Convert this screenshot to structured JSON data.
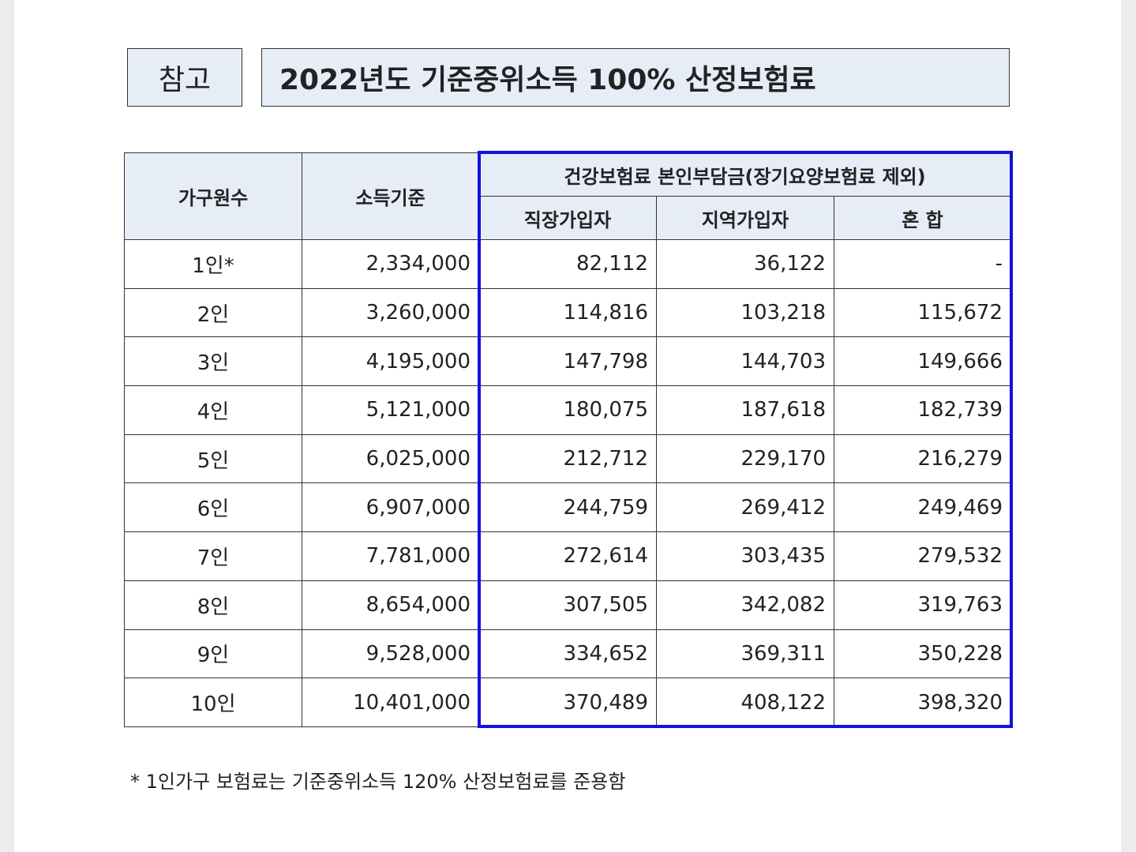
{
  "header": {
    "label": "참고",
    "title": "2022년도 기준중위소득 100% 산정보험료"
  },
  "table": {
    "headers": {
      "household": "가구원수",
      "income": "소득기준",
      "premium_group": "건강보험료 본인부담금(장기요양보험료 제외)",
      "employee": "직장가입자",
      "regional": "지역가입자",
      "mixed": "혼 합"
    },
    "rows": [
      [
        "1인*",
        "2,334,000",
        "82,112",
        "36,122",
        "-"
      ],
      [
        "2인",
        "3,260,000",
        "114,816",
        "103,218",
        "115,672"
      ],
      [
        "3인",
        "4,195,000",
        "147,798",
        "144,703",
        "149,666"
      ],
      [
        "4인",
        "5,121,000",
        "180,075",
        "187,618",
        "182,739"
      ],
      [
        "5인",
        "6,025,000",
        "212,712",
        "229,170",
        "216,279"
      ],
      [
        "6인",
        "6,907,000",
        "244,759",
        "269,412",
        "249,469"
      ],
      [
        "7인",
        "7,781,000",
        "272,614",
        "303,435",
        "279,532"
      ],
      [
        "8인",
        "8,654,000",
        "307,505",
        "342,082",
        "319,763"
      ],
      [
        "9인",
        "9,528,000",
        "334,652",
        "369,311",
        "350,228"
      ],
      [
        "10인",
        "10,401,000",
        "370,489",
        "408,122",
        "398,320"
      ]
    ]
  },
  "footnote": "* 1인가구 보험료는 기준중위소득 120% 산정보험료를 준용함"
}
